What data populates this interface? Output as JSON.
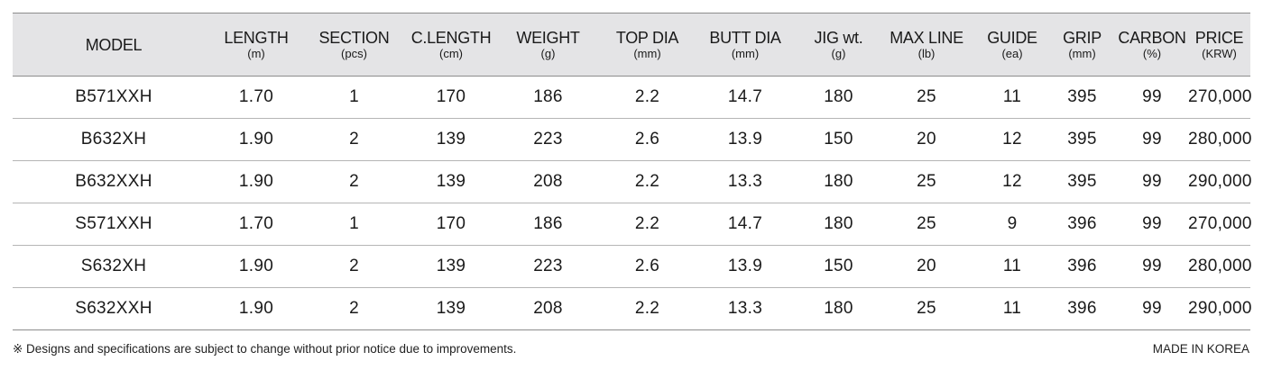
{
  "table": {
    "columns": [
      {
        "label": "MODEL",
        "unit": ""
      },
      {
        "label": "LENGTH",
        "unit": "(m)"
      },
      {
        "label": "SECTION",
        "unit": "(pcs)"
      },
      {
        "label": "C.LENGTH",
        "unit": "(cm)"
      },
      {
        "label": "WEIGHT",
        "unit": "(g)"
      },
      {
        "label": "TOP DIA",
        "unit": "(mm)"
      },
      {
        "label": "BUTT DIA",
        "unit": "(mm)"
      },
      {
        "label": "JIG wt.",
        "unit": "(g)"
      },
      {
        "label": "MAX LINE",
        "unit": "(lb)"
      },
      {
        "label": "GUIDE",
        "unit": "(ea)"
      },
      {
        "label": "GRIP",
        "unit": "(mm)"
      },
      {
        "label": "CARBON",
        "unit": "(%)"
      },
      {
        "label": "PRICE",
        "unit": "(KRW)"
      }
    ],
    "rows": [
      [
        "B571XXH",
        "1.70",
        "1",
        "170",
        "186",
        "2.2",
        "14.7",
        "180",
        "25",
        "11",
        "395",
        "99",
        "270,000"
      ],
      [
        "B632XH",
        "1.90",
        "2",
        "139",
        "223",
        "2.6",
        "13.9",
        "150",
        "20",
        "12",
        "395",
        "99",
        "280,000"
      ],
      [
        "B632XXH",
        "1.90",
        "2",
        "139",
        "208",
        "2.2",
        "13.3",
        "180",
        "25",
        "12",
        "395",
        "99",
        "290,000"
      ],
      [
        "S571XXH",
        "1.70",
        "1",
        "170",
        "186",
        "2.2",
        "14.7",
        "180",
        "25",
        "9",
        "396",
        "99",
        "270,000"
      ],
      [
        "S632XH",
        "1.90",
        "2",
        "139",
        "223",
        "2.6",
        "13.9",
        "150",
        "20",
        "11",
        "396",
        "99",
        "280,000"
      ],
      [
        "S632XXH",
        "1.90",
        "2",
        "139",
        "208",
        "2.2",
        "13.3",
        "180",
        "25",
        "11",
        "396",
        "99",
        "290,000"
      ]
    ]
  },
  "footer": {
    "note": "※ Designs and specifications are subject to change without prior notice due to improvements.",
    "origin": "MADE IN KOREA"
  }
}
